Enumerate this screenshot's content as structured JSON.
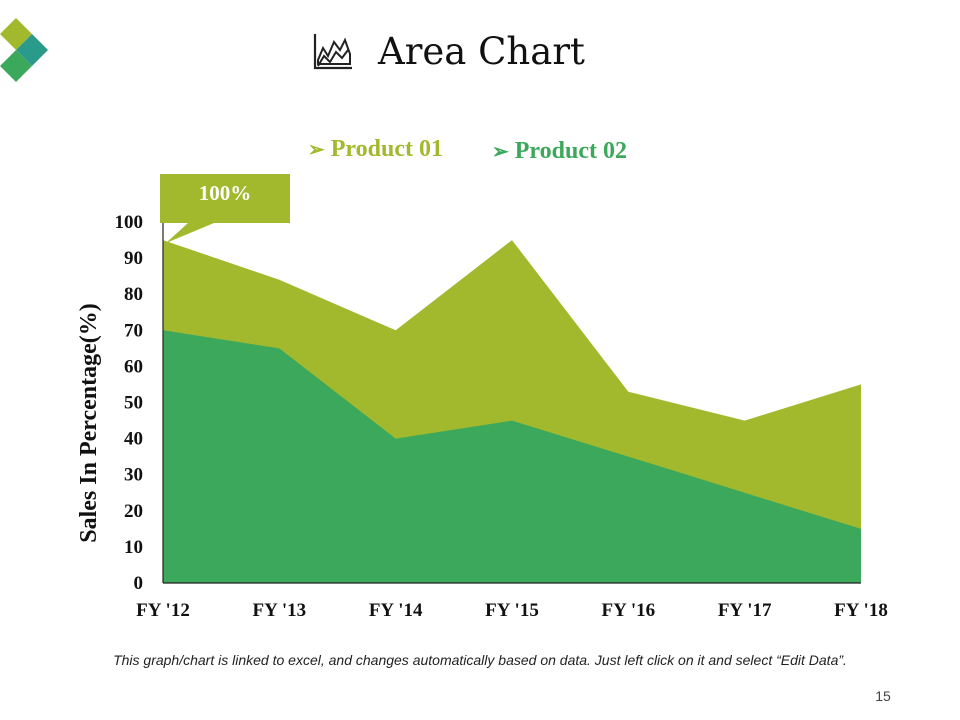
{
  "slide": {
    "title": "Area Chart",
    "title_icon": "area-chart-icon",
    "footer_note": "This graph/chart is linked to excel, and changes automatically based on data. Just left click on it and select “Edit Data”.",
    "page_number": "15",
    "logo": "diamond-logo"
  },
  "colors": {
    "product01": "#a2b92d",
    "product02": "#3ca85c",
    "logo_light": "#a2b92d",
    "logo_mid": "#3ca85c",
    "logo_dark": "#2a9a8a",
    "axis": "#222222"
  },
  "callout": {
    "label": "100%"
  },
  "chart_data": {
    "type": "area",
    "categories": [
      "FY '12",
      "FY '13",
      "FY '14",
      "FY '15",
      "FY '16",
      "FY '17",
      "FY '18"
    ],
    "series": [
      {
        "name": "Product 01",
        "values": [
          95,
          84,
          70,
          95,
          53,
          45,
          55
        ]
      },
      {
        "name": "Product 02",
        "values": [
          70,
          65,
          40,
          45,
          35,
          25,
          15
        ]
      }
    ],
    "title": "Area Chart",
    "xlabel": "",
    "ylabel": "Sales In Percentage(%)",
    "ylim": [
      0,
      100
    ],
    "yticks": [
      0,
      10,
      20,
      30,
      40,
      50,
      60,
      70,
      80,
      90,
      100
    ],
    "grid": false,
    "legend": "top",
    "legend_entries": [
      "Product 01",
      "Product 02"
    ]
  }
}
